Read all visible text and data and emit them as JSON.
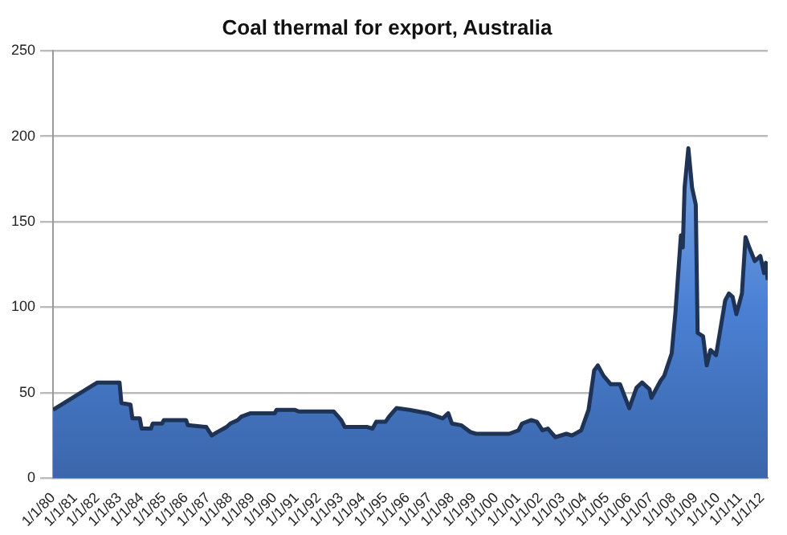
{
  "chart_data": {
    "type": "area",
    "title": "Coal thermal for export, Australia",
    "x": [
      "1980-01",
      "1982-01",
      "1983-01",
      "1983-02",
      "1983-07",
      "1983-08",
      "1983-12",
      "1984-01",
      "1984-06",
      "1984-07",
      "1984-12",
      "1985-01",
      "1986-01",
      "1986-02",
      "1986-12",
      "1987-03",
      "1987-06",
      "1987-11",
      "1988-01",
      "1988-05",
      "1988-07",
      "1988-12",
      "1990-01",
      "1990-02",
      "1990-12",
      "1991-02",
      "1992-09",
      "1993-01",
      "1993-03",
      "1994-03",
      "1994-06",
      "1994-08",
      "1995-01",
      "1995-03",
      "1995-07",
      "1996-02",
      "1996-12",
      "1997-08",
      "1997-11",
      "1998-01",
      "1998-06",
      "1998-11",
      "1999-02",
      "2000-08",
      "2001-01",
      "2001-03",
      "2001-08",
      "2001-11",
      "2002-02",
      "2002-05",
      "2002-09",
      "2003-03",
      "2003-06",
      "2003-11",
      "2004-03",
      "2004-06",
      "2004-08",
      "2004-11",
      "2005-03",
      "2005-08",
      "2006-01",
      "2006-05",
      "2006-08",
      "2006-12",
      "2007-01",
      "2007-06",
      "2007-08",
      "2007-12",
      "2008-02",
      "2008-05",
      "2008-06",
      "2008-07",
      "2008-09",
      "2008-11",
      "2009-01",
      "2009-02",
      "2009-05",
      "2009-07",
      "2009-09",
      "2009-12",
      "2010-02",
      "2010-05",
      "2010-07",
      "2010-09",
      "2010-11",
      "2011-02",
      "2011-04",
      "2011-06",
      "2011-09",
      "2011-12",
      "2012-02",
      "2012-03",
      "2012-04"
    ],
    "series": [
      {
        "color": "#4a80d4",
        "values": [
          40,
          56,
          56,
          44,
          43,
          35,
          35,
          29,
          29,
          32,
          32,
          34,
          34,
          31,
          30,
          25,
          27,
          30,
          32,
          34,
          36,
          38,
          38,
          40,
          40,
          39,
          39,
          34,
          30,
          30,
          29,
          33,
          33,
          36,
          41,
          40,
          38,
          35,
          38,
          32,
          31,
          27,
          26,
          26,
          28,
          32,
          34,
          33,
          28,
          29,
          24,
          26,
          25,
          28,
          40,
          63,
          66,
          60,
          55,
          55,
          41,
          53,
          56,
          52,
          47,
          57,
          60,
          73,
          97,
          142,
          135,
          170,
          193,
          170,
          160,
          85,
          83,
          66,
          75,
          72,
          85,
          104,
          108,
          106,
          96,
          108,
          141,
          135,
          127,
          130,
          120,
          126,
          116
        ]
      }
    ],
    "xlim": [
      "1980-01",
      "2012-04"
    ],
    "xticks": [
      {
        "value": "1980-01-01",
        "label": "1/1/80"
      },
      {
        "value": "1981-01-01",
        "label": "1/1/81"
      },
      {
        "value": "1982-01-01",
        "label": "1/1/82"
      },
      {
        "value": "1983-01-01",
        "label": "1/1/83"
      },
      {
        "value": "1984-01-01",
        "label": "1/1/84"
      },
      {
        "value": "1985-01-01",
        "label": "1/1/85"
      },
      {
        "value": "1986-01-01",
        "label": "1/1/86"
      },
      {
        "value": "1987-01-01",
        "label": "1/1/87"
      },
      {
        "value": "1988-01-01",
        "label": "1/1/88"
      },
      {
        "value": "1989-01-01",
        "label": "1/1/89"
      },
      {
        "value": "1990-01-01",
        "label": "1/1/90"
      },
      {
        "value": "1991-01-01",
        "label": "1/1/91"
      },
      {
        "value": "1992-01-01",
        "label": "1/1/92"
      },
      {
        "value": "1993-01-01",
        "label": "1/1/93"
      },
      {
        "value": "1994-01-01",
        "label": "1/1/94"
      },
      {
        "value": "1995-01-01",
        "label": "1/1/95"
      },
      {
        "value": "1996-01-01",
        "label": "1/1/96"
      },
      {
        "value": "1997-01-01",
        "label": "1/1/97"
      },
      {
        "value": "1998-01-01",
        "label": "1/1/98"
      },
      {
        "value": "1999-01-01",
        "label": "1/1/99"
      },
      {
        "value": "2000-01-01",
        "label": "1/1/00"
      },
      {
        "value": "2001-01-01",
        "label": "1/1/01"
      },
      {
        "value": "2002-01-01",
        "label": "1/1/02"
      },
      {
        "value": "2003-01-01",
        "label": "1/1/03"
      },
      {
        "value": "2004-01-01",
        "label": "1/1/04"
      },
      {
        "value": "2005-01-01",
        "label": "1/1/05"
      },
      {
        "value": "2006-01-01",
        "label": "1/1/06"
      },
      {
        "value": "2007-01-01",
        "label": "1/1/07"
      },
      {
        "value": "2008-01-01",
        "label": "1/1/08"
      },
      {
        "value": "2009-01-01",
        "label": "1/1/09"
      },
      {
        "value": "2010-01-01",
        "label": "1/1/10"
      },
      {
        "value": "2011-01-01",
        "label": "1/1/11"
      },
      {
        "value": "2012-01-01",
        "label": "1/1/12"
      }
    ],
    "ylim": [
      0,
      250
    ],
    "yticks": [
      0,
      50,
      100,
      150,
      200,
      250
    ],
    "grid": "y",
    "legend": false
  }
}
